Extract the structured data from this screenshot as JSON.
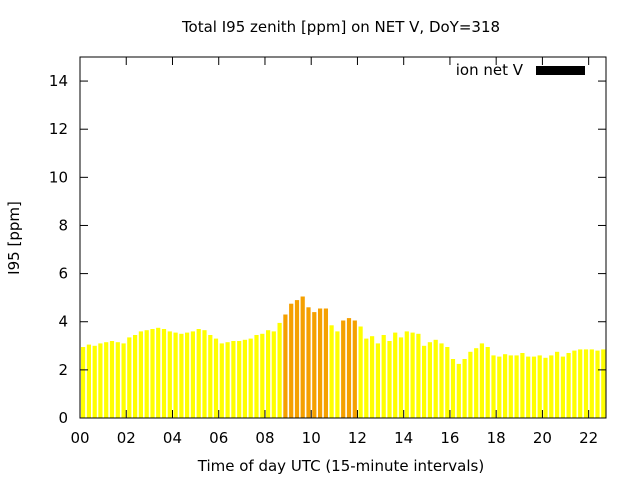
{
  "chart_data": {
    "type": "bar",
    "title": "Total I95 zenith [ppm] on NET V, DoY=318",
    "xlabel": "Time of day UTC (15-minute intervals)",
    "ylabel": "I95 [ppm]",
    "legend": {
      "label": "ion net V",
      "swatch_color": "#000000",
      "position": "top-right"
    },
    "xlim": [
      0,
      22.75
    ],
    "ylim": [
      0,
      15
    ],
    "x_ticks": [
      "00",
      "02",
      "04",
      "06",
      "08",
      "10",
      "12",
      "14",
      "16",
      "18",
      "20",
      "22"
    ],
    "y_ticks": [
      "0",
      "2",
      "4",
      "6",
      "8",
      "10",
      "12",
      "14"
    ],
    "grid": false,
    "bar_width_hours": 0.18,
    "colors": {
      "low": "#ffff00",
      "elevated": "#f5a000",
      "threshold": 4
    },
    "x": [
      0,
      0.25,
      0.5,
      0.75,
      1,
      1.25,
      1.5,
      1.75,
      2,
      2.25,
      2.5,
      2.75,
      3,
      3.25,
      3.5,
      3.75,
      4,
      4.25,
      4.5,
      4.75,
      5,
      5.25,
      5.5,
      5.75,
      6,
      6.25,
      6.5,
      6.75,
      7,
      7.25,
      7.5,
      7.75,
      8,
      8.25,
      8.5,
      8.75,
      9,
      9.25,
      9.5,
      9.75,
      10,
      10.25,
      10.5,
      10.75,
      11,
      11.25,
      11.5,
      11.75,
      12,
      12.25,
      12.5,
      12.75,
      13,
      13.25,
      13.5,
      13.75,
      14,
      14.25,
      14.5,
      14.75,
      15,
      15.25,
      15.5,
      15.75,
      16,
      16.25,
      16.5,
      16.75,
      17,
      17.25,
      17.5,
      17.75,
      18,
      18.25,
      18.5,
      18.75,
      19,
      19.25,
      19.5,
      19.75,
      20,
      20.25,
      20.5,
      20.75,
      21,
      21.25,
      21.5,
      21.75,
      22,
      22.25,
      22.5
    ],
    "values": [
      2.95,
      3.05,
      3.0,
      3.1,
      3.15,
      3.2,
      3.15,
      3.1,
      3.35,
      3.45,
      3.6,
      3.65,
      3.7,
      3.75,
      3.7,
      3.6,
      3.55,
      3.5,
      3.55,
      3.6,
      3.7,
      3.65,
      3.45,
      3.3,
      3.1,
      3.15,
      3.2,
      3.2,
      3.25,
      3.3,
      3.45,
      3.5,
      3.65,
      3.6,
      3.95,
      4.3,
      4.75,
      4.9,
      5.05,
      4.6,
      4.4,
      4.55,
      4.55,
      3.85,
      3.6,
      4.05,
      4.15,
      4.05,
      3.8,
      3.3,
      3.4,
      3.1,
      3.45,
      3.2,
      3.55,
      3.35,
      3.6,
      3.55,
      3.5,
      3.0,
      3.15,
      3.25,
      3.1,
      2.95,
      2.45,
      2.25,
      2.45,
      2.75,
      2.9,
      3.1,
      2.95,
      2.6,
      2.55,
      2.65,
      2.6,
      2.6,
      2.7,
      2.55,
      2.55,
      2.6,
      2.5,
      2.6,
      2.75,
      2.55,
      2.7,
      2.8,
      2.85,
      2.85,
      2.85,
      2.8,
      2.85
    ]
  }
}
